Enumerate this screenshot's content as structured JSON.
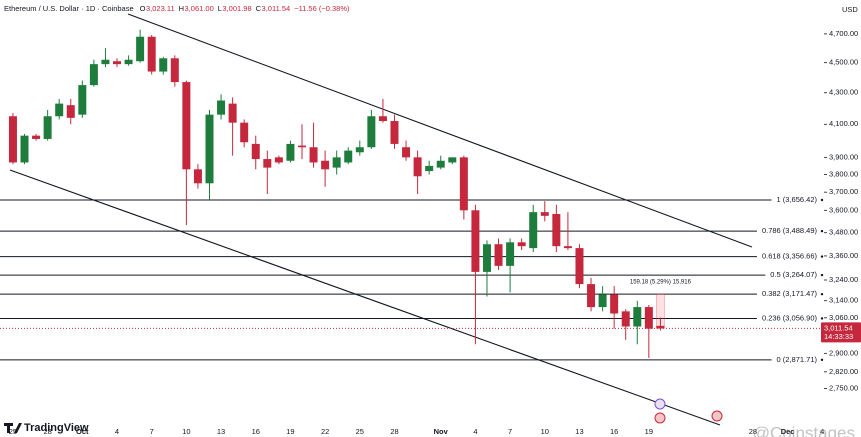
{
  "chart_data": {
    "type": "candlestick",
    "header": {
      "symbol": "Ethereum / U.S. Dollar · 1D · Coinbase",
      "o": "O",
      "o_value": "3,023.11",
      "h": "H",
      "h_value": "3,061.00",
      "l": "L",
      "l_value": "3,001.98",
      "c": "C",
      "c_value": "3,011.54",
      "change": "−11.56 (−0.38%)"
    },
    "currency": "USD",
    "open": [
      4150,
      3870,
      4030,
      4010,
      4150,
      4220,
      4160,
      4350,
      4490,
      4510,
      4490,
      4510,
      4680,
      4440,
      4530,
      4370,
      3830,
      3750,
      4160,
      4230,
      4110,
      3980,
      3890,
      3900,
      3880,
      3970,
      3960,
      3880,
      3840,
      3870,
      3930,
      3960,
      4150,
      4120,
      3960,
      3900,
      3820,
      3840,
      3870,
      3900,
      3600,
      3280,
      3420,
      3310,
      3430,
      3400,
      3590,
      3580,
      3410,
      3400,
      3220,
      3110,
      3170,
      3090,
      3020,
      3110,
      3023.11
    ],
    "high": [
      4170,
      4040,
      4040,
      4190,
      4260,
      4260,
      4380,
      4520,
      4600,
      4530,
      4550,
      4730,
      4693,
      4540,
      4550,
      4380,
      3860,
      4190,
      4290,
      4270,
      4130,
      4030,
      3940,
      3910,
      4000,
      4100,
      4110,
      3940,
      3940,
      3960,
      4000,
      4190,
      4260,
      4160,
      4000,
      3940,
      3880,
      3910,
      3900,
      3910,
      3630,
      3440,
      3450,
      3450,
      3450,
      3630,
      3650,
      3630,
      3590,
      3420,
      3250,
      3210,
      3210,
      3100,
      3140,
      3120,
      3061
    ],
    "low": [
      3860,
      3860,
      4000,
      4000,
      4130,
      4100,
      4140,
      4340,
      4470,
      4470,
      4480,
      4500,
      4420,
      4420,
      4340,
      3520,
      3720,
      3660,
      4130,
      3910,
      3960,
      3830,
      3690,
      3860,
      3870,
      3890,
      3840,
      3730,
      3800,
      3860,
      3910,
      3950,
      4110,
      3950,
      3880,
      3690,
      3800,
      3830,
      3860,
      3550,
      2940,
      3160,
      3290,
      3180,
      3390,
      3380,
      3540,
      3380,
      3390,
      3200,
      3090,
      3090,
      3010,
      2960,
      2940,
      2880,
      3001.98
    ],
    "close": [
      3870,
      4030,
      4010,
      4150,
      4230,
      4140,
      4350,
      4490,
      4520,
      4490,
      4520,
      4680,
      4440,
      4530,
      4370,
      3830,
      3750,
      4160,
      4250,
      4110,
      3990,
      3890,
      3840,
      3870,
      3980,
      3960,
      3870,
      3830,
      3900,
      3940,
      3960,
      4150,
      4120,
      3980,
      3900,
      3790,
      3850,
      3880,
      3900,
      3600,
      3280,
      3420,
      3310,
      3430,
      3410,
      3590,
      3570,
      3410,
      3400,
      3220,
      3110,
      3170,
      3080,
      3020,
      3110,
      3010,
      3011.54
    ],
    "up_color": "#1e7d3c",
    "down_color": "#c5283d",
    "log_scale": true,
    "ylim": [
      2622,
      4910
    ],
    "yticks": [
      {
        "value": 4700,
        "label": "4,700.00"
      },
      {
        "value": 4500,
        "label": "4,500.00"
      },
      {
        "value": 4300,
        "label": "4,300.00"
      },
      {
        "value": 4100,
        "label": "4,100.00"
      },
      {
        "value": 3900,
        "label": "3,900.00"
      },
      {
        "value": 3800,
        "label": "3,800.00"
      },
      {
        "value": 3700,
        "label": "3,700.00"
      },
      {
        "value": 3600,
        "label": "3,600.00"
      },
      {
        "value": 3480,
        "label": "3,480.00"
      },
      {
        "value": 3360,
        "label": "3,360.00"
      },
      {
        "value": 3240,
        "label": "3,240.00"
      },
      {
        "value": 3140,
        "label": "3,140.00"
      },
      {
        "value": 3060,
        "label": "3,060.00"
      },
      {
        "value": 2900,
        "label": "2,900.00"
      },
      {
        "value": 2820,
        "label": "2,820.00"
      },
      {
        "value": 2750,
        "label": "2,750.00"
      }
    ],
    "xlim": [
      -1.12,
      73.35
    ],
    "xticks": [
      {
        "value": 0,
        "label": "25"
      },
      {
        "value": 3,
        "label": "28"
      },
      {
        "value": 6,
        "label": "Oct"
      },
      {
        "value": 9,
        "label": "4"
      },
      {
        "value": 12,
        "label": "7"
      },
      {
        "value": 15,
        "label": "10"
      },
      {
        "value": 18,
        "label": "13"
      },
      {
        "value": 21,
        "label": "16"
      },
      {
        "value": 24,
        "label": "19"
      },
      {
        "value": 27,
        "label": "22"
      },
      {
        "value": 30,
        "label": "25"
      },
      {
        "value": 33,
        "label": "28"
      },
      {
        "value": 37,
        "label": "Nov"
      },
      {
        "value": 40,
        "label": "4"
      },
      {
        "value": 43,
        "label": "7"
      },
      {
        "value": 46,
        "label": "10"
      },
      {
        "value": 49,
        "label": "13"
      },
      {
        "value": 52,
        "label": "16"
      },
      {
        "value": 55,
        "label": "19"
      },
      {
        "value": 64,
        "label": "28"
      },
      {
        "value": 67,
        "label": "Dec"
      },
      {
        "value": 70,
        "label": "4"
      }
    ],
    "fib_levels": [
      {
        "value": 3656.42,
        "label": "1 (3,656.42)"
      },
      {
        "value": 3488.49,
        "label": "0.786 (3,488.49)"
      },
      {
        "value": 3356.66,
        "label": "0.618 (3,356.66)"
      },
      {
        "value": 3264.07,
        "label": "0.5 (3,264.07)"
      },
      {
        "value": 3171.47,
        "label": "0.382 (3,171.47)"
      },
      {
        "value": 3056.9,
        "label": "0.236 (3,056.90)"
      },
      {
        "value": 2871.71,
        "label": "0 (2,871.71)"
      }
    ],
    "last_price": {
      "value": 3011.54,
      "label": "3,011.54"
    },
    "countdown": "14:33:33",
    "measure": "159.18 (5.29%) 15,916",
    "brand": "TradingView",
    "watermark": "@Coinstages"
  }
}
